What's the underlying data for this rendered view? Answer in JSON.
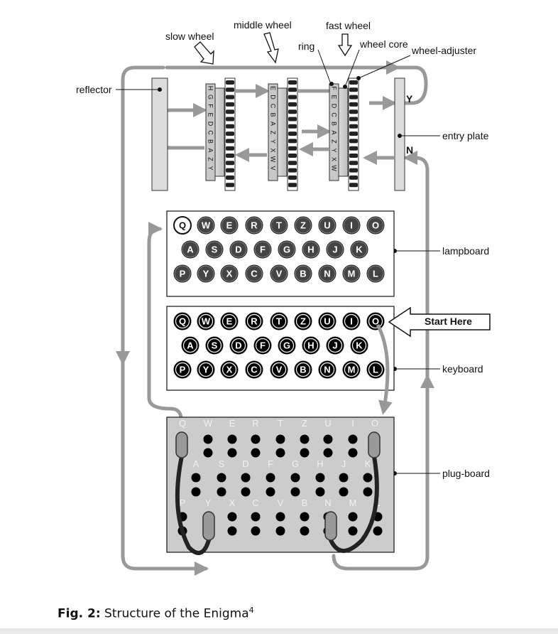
{
  "labels": {
    "slow_wheel": "slow wheel",
    "middle_wheel": "middle wheel",
    "fast_wheel": "fast wheel",
    "ring": "ring",
    "wheel_core": "wheel core",
    "wheel_adjuster": "wheel-adjuster",
    "reflector": "reflector",
    "entry_plate": "entry plate",
    "lampboard": "lampboard",
    "keyboard": "keyboard",
    "plug_board": "plug-board",
    "start_here": "Start Here",
    "y_marker": "Y",
    "n_marker": "N"
  },
  "wheel_letters": {
    "slow": [
      "H",
      "G",
      "F",
      "E",
      "D",
      "C",
      "B",
      "A",
      "Z",
      "Y"
    ],
    "middle": [
      "E",
      "D",
      "C",
      "B",
      "A",
      "Z",
      "Y",
      "X",
      "W",
      "V"
    ],
    "fast": [
      "F",
      "E",
      "D",
      "C",
      "B",
      "A",
      "Z",
      "Y",
      "X",
      "W"
    ]
  },
  "rows": [
    [
      "Q",
      "W",
      "E",
      "R",
      "T",
      "Z",
      "U",
      "I",
      "O"
    ],
    [
      "A",
      "S",
      "D",
      "F",
      "G",
      "H",
      "J",
      "K"
    ],
    [
      "P",
      "Y",
      "X",
      "C",
      "V",
      "B",
      "N",
      "M",
      "L"
    ]
  ],
  "caption": {
    "prefix": "Fig. 2:",
    "text": " Structure of the Enigma",
    "sup": "4"
  },
  "colors": {
    "path_gray": "#999999",
    "key_dark": "#000000",
    "lamp_dark": "#444444",
    "plugboard_bg": "#cccccc",
    "wheel_gray": "#c8c8c8"
  }
}
